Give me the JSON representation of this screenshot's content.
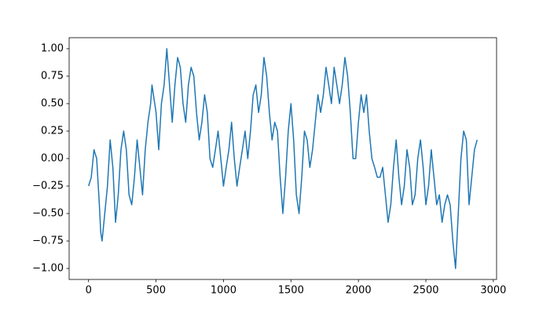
{
  "chart_data": {
    "type": "line",
    "color": "#1f77b4",
    "x": [
      0,
      20,
      40,
      60,
      80,
      90,
      100,
      120,
      140,
      160,
      180,
      200,
      220,
      240,
      260,
      280,
      300,
      320,
      340,
      360,
      380,
      400,
      420,
      440,
      460,
      470,
      500,
      520,
      540,
      560,
      580,
      600,
      620,
      640,
      660,
      680,
      700,
      720,
      740,
      760,
      780,
      800,
      820,
      840,
      860,
      880,
      900,
      920,
      940,
      960,
      980,
      1000,
      1020,
      1040,
      1060,
      1080,
      1100,
      1120,
      1140,
      1160,
      1180,
      1200,
      1220,
      1240,
      1260,
      1280,
      1300,
      1320,
      1340,
      1360,
      1380,
      1400,
      1420,
      1440,
      1460,
      1480,
      1500,
      1520,
      1540,
      1560,
      1580,
      1600,
      1620,
      1640,
      1660,
      1680,
      1700,
      1720,
      1740,
      1760,
      1780,
      1800,
      1820,
      1840,
      1860,
      1880,
      1900,
      1920,
      1940,
      1960,
      1980,
      2000,
      2020,
      2040,
      2060,
      2080,
      2100,
      2120,
      2140,
      2160,
      2180,
      2200,
      2220,
      2240,
      2260,
      2280,
      2300,
      2320,
      2340,
      2360,
      2380,
      2400,
      2420,
      2440,
      2460,
      2480,
      2500,
      2520,
      2540,
      2560,
      2580,
      2600,
      2620,
      2640,
      2660,
      2680,
      2700,
      2720,
      2740,
      2760,
      2780,
      2800,
      2820,
      2840,
      2860,
      2880
    ],
    "series": [
      {
        "values": [
          -0.25,
          -0.17,
          0.08,
          0.0,
          -0.42,
          -0.67,
          -0.75,
          -0.5,
          -0.25,
          0.17,
          -0.08,
          -0.58,
          -0.33,
          0.08,
          0.25,
          0.08,
          -0.33,
          -0.42,
          -0.17,
          0.17,
          -0.08,
          -0.33,
          0.08,
          0.33,
          0.5,
          0.67,
          0.42,
          0.08,
          0.5,
          0.67,
          1.0,
          0.67,
          0.33,
          0.67,
          0.92,
          0.83,
          0.5,
          0.33,
          0.67,
          0.83,
          0.75,
          0.42,
          0.17,
          0.33,
          0.58,
          0.42,
          0.0,
          -0.08,
          0.08,
          0.25,
          0.0,
          -0.25,
          -0.08,
          0.08,
          0.33,
          0.0,
          -0.25,
          -0.08,
          0.08,
          0.25,
          0.0,
          0.25,
          0.58,
          0.67,
          0.42,
          0.58,
          0.92,
          0.75,
          0.42,
          0.17,
          0.33,
          0.25,
          -0.17,
          -0.5,
          -0.17,
          0.25,
          0.5,
          0.17,
          -0.33,
          -0.5,
          -0.17,
          0.25,
          0.17,
          -0.08,
          0.08,
          0.33,
          0.58,
          0.42,
          0.58,
          0.83,
          0.67,
          0.5,
          0.83,
          0.67,
          0.5,
          0.67,
          0.92,
          0.75,
          0.42,
          0.0,
          0.0,
          0.33,
          0.58,
          0.42,
          0.58,
          0.25,
          0.0,
          -0.08,
          -0.17,
          -0.17,
          -0.08,
          -0.33,
          -0.58,
          -0.42,
          -0.08,
          0.17,
          -0.17,
          -0.42,
          -0.25,
          0.08,
          -0.08,
          -0.42,
          -0.33,
          0.0,
          0.17,
          -0.08,
          -0.42,
          -0.25,
          0.08,
          -0.17,
          -0.42,
          -0.33,
          -0.58,
          -0.42,
          -0.33,
          -0.42,
          -0.75,
          -1.0,
          -0.5,
          0.0,
          0.25,
          0.17,
          -0.42,
          -0.17,
          0.08,
          0.17
        ]
      }
    ],
    "xlim": [
      -144,
      3024
    ],
    "xticks": [
      0,
      500,
      1000,
      1500,
      2000,
      2500,
      3000
    ],
    "ylim": [
      -1.1,
      1.1
    ],
    "yticks": [
      {
        "value": -1,
        "label": "−1.00"
      },
      {
        "value": -0.75,
        "label": "−0.75"
      },
      {
        "value": -0.5,
        "label": "−0.50"
      },
      {
        "value": -0.25,
        "label": "−0.25"
      },
      {
        "value": 0,
        "label": "0.00"
      },
      {
        "value": 0.25,
        "label": "0.25"
      },
      {
        "value": 0.5,
        "label": "0.50"
      },
      {
        "value": 0.75,
        "label": "0.75"
      },
      {
        "value": 1,
        "label": "1.00"
      }
    ]
  }
}
